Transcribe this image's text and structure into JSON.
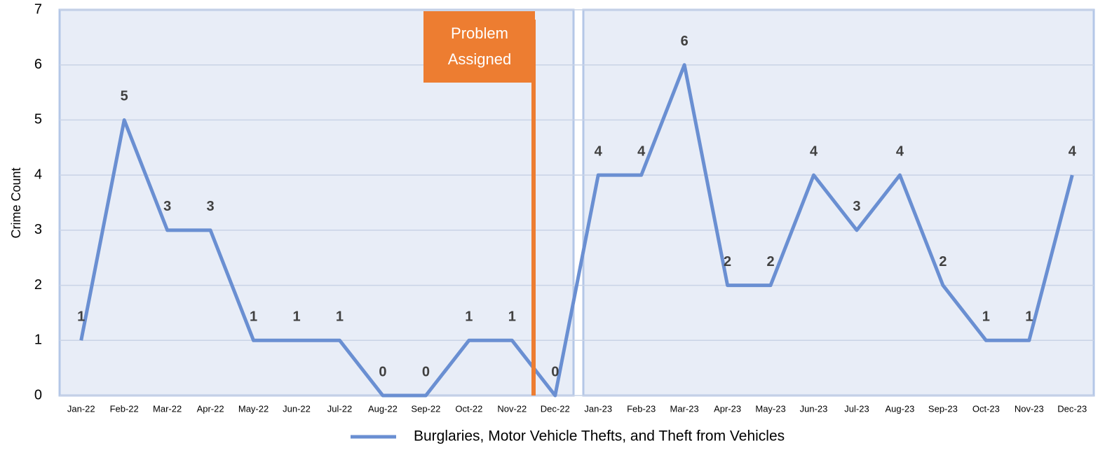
{
  "chart_data": {
    "type": "line",
    "y_label": "Crime Count",
    "categories": [
      "Jan-22",
      "Feb-22",
      "Mar-22",
      "Apr-22",
      "May-22",
      "Jun-22",
      "Jul-22",
      "Aug-22",
      "Sep-22",
      "Oct-22",
      "Nov-22",
      "Dec-22",
      "Jan-23",
      "Feb-23",
      "Mar-23",
      "Apr-23",
      "May-23",
      "Jun-23",
      "Jul-23",
      "Aug-23",
      "Sep-23",
      "Oct-23",
      "Nov-23",
      "Dec-23"
    ],
    "series": [
      {
        "name": "Burglaries, Motor Vehicle Thefts, and Theft from Vehicles",
        "color": "#6a8fd2",
        "values": [
          1,
          5,
          3,
          3,
          1,
          1,
          1,
          0,
          0,
          1,
          1,
          0,
          4,
          4,
          6,
          2,
          2,
          4,
          3,
          4,
          2,
          1,
          1,
          4
        ]
      }
    ],
    "ylim": [
      0,
      7
    ],
    "yticks": [
      0,
      1,
      2,
      3,
      4,
      5,
      6,
      7
    ],
    "grid": true,
    "data_labels": true,
    "annotation": {
      "lines": [
        "Problem",
        "Assigned"
      ],
      "color": "#ed7d31"
    },
    "legend": "bottom"
  }
}
